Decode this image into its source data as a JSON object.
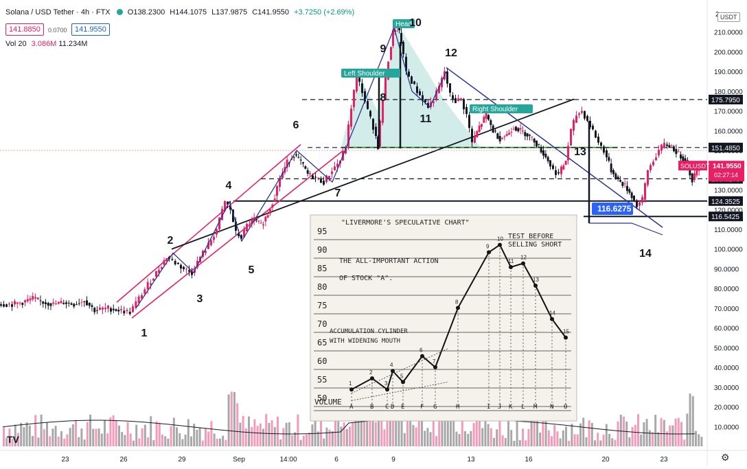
{
  "header": {
    "symbol": "Solana / USD Tether · 4h · FTX",
    "ohlc": {
      "o": "O138.2300",
      "h": "H144.1075",
      "l": "L137.9875",
      "c": "C141.9550",
      "chg": "+3.7250 (+2.69%)"
    },
    "bid": "141.8850",
    "spread": "0.0700",
    "ask": "141.9550",
    "volume_label": "Vol 20",
    "volume_value": "3.086M",
    "volume_ma": "11.234M",
    "quote_currency": "USDT"
  },
  "colors": {
    "up": "#26a69a",
    "down": "#131722",
    "bull_candle": "#e91e63",
    "channel": "#e91e63",
    "trend": "#283593",
    "head_fill": "#b2dfdb"
  },
  "chart_data": {
    "type": "candlestick",
    "y_axis": {
      "min": 0,
      "max": 220,
      "ticks": [
        "10.0000",
        "20.0000",
        "30.0000",
        "40.0000",
        "50.0000",
        "60.0000",
        "70.0000",
        "80.0000",
        "90.0000",
        "100.0000",
        "110.0000",
        "120.0000",
        "130.0000",
        "140.0000",
        "150.0000",
        "160.0000",
        "170.0000",
        "180.0000",
        "190.0000",
        "200.0000",
        "210.0000"
      ],
      "top_label": "2"
    },
    "x_axis": {
      "ticks": [
        "23",
        "26",
        "29",
        "Sep",
        "14:00",
        "6",
        "9",
        "13",
        "16",
        "20",
        "23"
      ]
    },
    "price_path": [
      [
        0,
        72
      ],
      [
        20,
        72
      ],
      [
        35,
        73
      ],
      [
        50,
        75
      ],
      [
        65,
        73
      ],
      [
        80,
        72
      ],
      [
        95,
        73
      ],
      [
        110,
        72
      ],
      [
        125,
        74
      ],
      [
        140,
        69
      ],
      [
        160,
        70
      ],
      [
        175,
        69
      ],
      [
        192,
        68
      ],
      [
        205,
        75
      ],
      [
        218,
        82
      ],
      [
        230,
        88
      ],
      [
        245,
        96
      ],
      [
        258,
        93
      ],
      [
        270,
        90
      ],
      [
        282,
        88
      ],
      [
        294,
        96
      ],
      [
        306,
        102
      ],
      [
        318,
        110
      ],
      [
        330,
        124
      ],
      [
        338,
        120
      ],
      [
        346,
        108
      ],
      [
        354,
        106
      ],
      [
        362,
        112
      ],
      [
        372,
        115
      ],
      [
        382,
        112
      ],
      [
        392,
        118
      ],
      [
        402,
        127
      ],
      [
        410,
        136
      ],
      [
        420,
        144
      ],
      [
        430,
        148
      ],
      [
        440,
        144
      ],
      [
        450,
        138
      ],
      [
        462,
        136
      ],
      [
        474,
        134
      ],
      [
        486,
        140
      ],
      [
        498,
        145
      ],
      [
        506,
        152
      ],
      [
        514,
        172
      ],
      [
        522,
        188
      ],
      [
        530,
        180
      ],
      [
        538,
        170
      ],
      [
        546,
        162
      ],
      [
        552,
        152
      ],
      [
        560,
        176
      ],
      [
        568,
        196
      ],
      [
        574,
        210
      ],
      [
        580,
        214
      ],
      [
        586,
        205
      ],
      [
        594,
        190
      ],
      [
        602,
        185
      ],
      [
        610,
        180
      ],
      [
        618,
        176
      ],
      [
        626,
        172
      ],
      [
        634,
        176
      ],
      [
        642,
        182
      ],
      [
        650,
        190
      ],
      [
        658,
        178
      ],
      [
        666,
        175
      ],
      [
        674,
        176
      ],
      [
        682,
        168
      ],
      [
        690,
        154
      ],
      [
        700,
        162
      ],
      [
        710,
        168
      ],
      [
        720,
        160
      ],
      [
        730,
        156
      ],
      [
        740,
        158
      ],
      [
        750,
        162
      ],
      [
        760,
        160
      ],
      [
        770,
        158
      ],
      [
        780,
        155
      ],
      [
        790,
        150
      ],
      [
        800,
        145
      ],
      [
        808,
        140
      ],
      [
        816,
        138
      ],
      [
        826,
        145
      ],
      [
        834,
        160
      ],
      [
        842,
        168
      ],
      [
        850,
        170
      ],
      [
        858,
        165
      ],
      [
        866,
        160
      ],
      [
        874,
        154
      ],
      [
        882,
        150
      ],
      [
        892,
        140
      ],
      [
        902,
        135
      ],
      [
        912,
        132
      ],
      [
        922,
        127
      ],
      [
        930,
        122
      ],
      [
        938,
        125
      ],
      [
        946,
        140
      ],
      [
        954,
        145
      ],
      [
        962,
        150
      ],
      [
        970,
        153
      ],
      [
        980,
        152
      ],
      [
        990,
        148
      ],
      [
        1000,
        145
      ],
      [
        1010,
        135
      ],
      [
        1020,
        142
      ]
    ],
    "horizontal_levels": [
      {
        "value": 175.795,
        "label": "175.7950",
        "style": "dashed"
      },
      {
        "value": 151.485,
        "label": "151.4850",
        "style": "dashed"
      },
      {
        "value": 135.6275,
        "label": "135.6275",
        "style": "dashed"
      },
      {
        "value": 124.3525,
        "label": "124.3525",
        "style": "solid"
      },
      {
        "value": 116.5425,
        "label": "116.5425",
        "style": "solid"
      }
    ],
    "current_price": {
      "value": 141.955,
      "label": "141.9550",
      "symbol": "SOLUSDT",
      "countdown": "02:27:14"
    },
    "measure_label": "116.6275",
    "pattern_labels": [
      "Head",
      "Left Shoulder",
      "Right Shoulder"
    ],
    "wave_numbers": [
      "1",
      "2",
      "3",
      "4",
      "5",
      "6",
      "7",
      "8",
      "9",
      "10",
      "11",
      "12",
      "13",
      "14"
    ],
    "inset": {
      "title": "\"LIVERMORE'S SPECULATIVE CHART\"",
      "subtitle_1": "THE ALL-IMPORTANT ACTION",
      "subtitle_2": "OF STOCK \"A\".",
      "note_1": "TEST BEFORE",
      "note_2": "SELLING SHORT",
      "accum_1": "ACCUMULATION CYLINDER",
      "accum_2": "WITH WIDENING MOUTH",
      "volume_label": "VOLUME",
      "y_levels": [
        "95",
        "90",
        "85",
        "80",
        "75",
        "70",
        "65",
        "60",
        "55",
        "50"
      ],
      "letters": [
        "A",
        "B",
        "C",
        "D",
        "E",
        "F",
        "G",
        "H",
        "I",
        "J",
        "K",
        "L",
        "M",
        "N",
        "O"
      ],
      "points": [
        {
          "n": "1",
          "v": 52
        },
        {
          "n": "2",
          "v": 55
        },
        {
          "n": "3",
          "v": 52
        },
        {
          "n": "4",
          "v": 57
        },
        {
          "n": "5",
          "v": 54
        },
        {
          "n": "6",
          "v": 61
        },
        {
          "n": "7",
          "v": 58
        },
        {
          "n": "8",
          "v": 74
        },
        {
          "n": "9",
          "v": 89
        },
        {
          "n": "10",
          "v": 91
        },
        {
          "n": "11",
          "v": 85
        },
        {
          "n": "12",
          "v": 86
        },
        {
          "n": "13",
          "v": 80
        },
        {
          "n": "14",
          "v": 71
        },
        {
          "n": "15",
          "v": 66
        }
      ]
    }
  }
}
